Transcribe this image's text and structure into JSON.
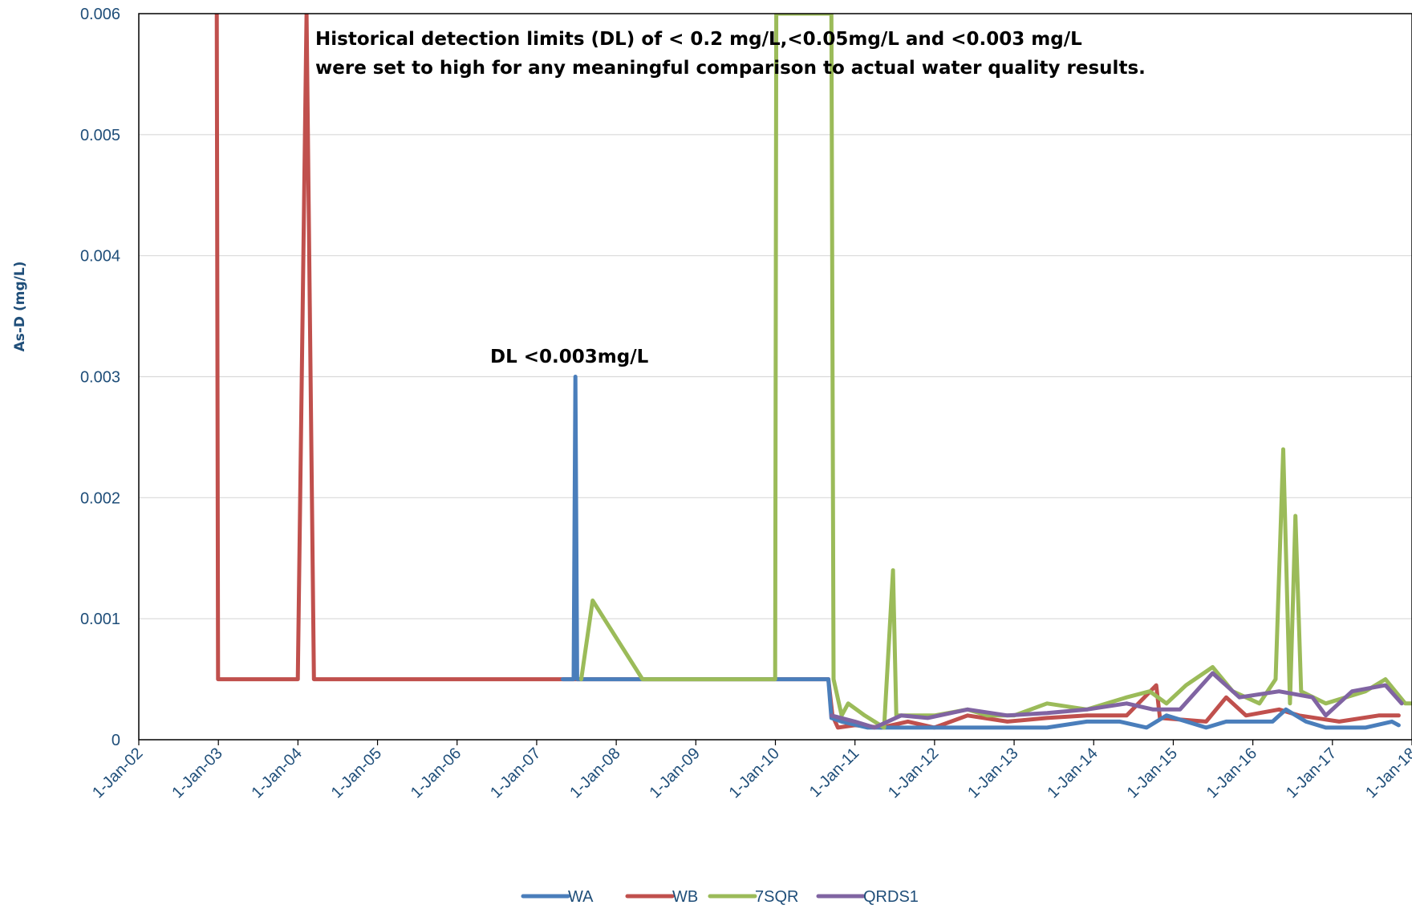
{
  "chart_data": {
    "type": "line",
    "title": "",
    "xlabel": "",
    "ylabel": "As-D  (mg/L)",
    "ylim": [
      0,
      0.006
    ],
    "xlim": [
      "2002-01-01",
      "2018-01-01"
    ],
    "x_ticks": [
      "1-Jan-02",
      "1-Jan-03",
      "1-Jan-04",
      "1-Jan-05",
      "1-Jan-06",
      "1-Jan-07",
      "1-Jan-08",
      "1-Jan-09",
      "1-Jan-10",
      "1-Jan-11",
      "1-Jan-12",
      "1-Jan-13",
      "1-Jan-14",
      "1-Jan-15",
      "1-Jan-16",
      "1-Jan-17",
      "1-Jan-18"
    ],
    "y_ticks": [
      {
        "value": 0,
        "label": "0"
      },
      {
        "value": 0.001,
        "label": "0.001"
      },
      {
        "value": 0.002,
        "label": "0.002"
      },
      {
        "value": 0.003,
        "label": "0.003"
      },
      {
        "value": 0.004,
        "label": "0.004"
      },
      {
        "value": 0.005,
        "label": "0.005"
      },
      {
        "value": 0.006,
        "label": "0.006"
      }
    ],
    "grid": "horizontal",
    "legend_position": "bottom",
    "annotations": [
      {
        "lines": [
          "Historical detection limits (DL) of < 0.2 mg/L,<0.05mg/L and <0.003 mg/L",
          "were set to high for any meaningful comparison to actual water quality results."
        ]
      },
      {
        "lines": [
          "DL <0.003mg/L"
        ]
      }
    ],
    "series": [
      {
        "name": "WA",
        "color": "#4A7EBB",
        "points": [
          [
            "2007-05-01",
            0.0005
          ],
          [
            "2007-06-20",
            0.0005
          ],
          [
            "2007-06-28",
            0.003
          ],
          [
            "2007-07-06",
            0.0005
          ],
          [
            "2007-07-25",
            0.0005
          ],
          [
            "2007-08-05",
            0.0005
          ],
          [
            "2010-09-01",
            0.0005
          ],
          [
            "2010-09-15",
            0.00018
          ],
          [
            "2010-11-01",
            0.00015
          ],
          [
            "2011-03-01",
            0.0001
          ],
          [
            "2011-08-01",
            0.0001
          ],
          [
            "2011-12-01",
            0.0001
          ],
          [
            "2012-06-01",
            0.0001
          ],
          [
            "2012-12-01",
            0.0001
          ],
          [
            "2013-06-01",
            0.0001
          ],
          [
            "2013-12-01",
            0.00015
          ],
          [
            "2014-05-01",
            0.00015
          ],
          [
            "2014-09-01",
            0.0001
          ],
          [
            "2014-12-01",
            0.0002
          ],
          [
            "2015-06-01",
            0.0001
          ],
          [
            "2015-09-01",
            0.00015
          ],
          [
            "2016-04-01",
            0.00015
          ],
          [
            "2016-06-01",
            0.00025
          ],
          [
            "2016-09-01",
            0.00015
          ],
          [
            "2016-12-01",
            0.0001
          ],
          [
            "2017-06-01",
            0.0001
          ],
          [
            "2017-10-01",
            0.00015
          ],
          [
            "2017-11-01",
            0.00012
          ]
        ]
      },
      {
        "name": "WB",
        "color": "#C0504D",
        "points": [
          [
            "2002-12-25",
            0.006
          ],
          [
            "2002-12-31",
            0.0005
          ],
          [
            "2004-01-01",
            0.0005
          ],
          [
            "2004-02-10",
            0.006
          ],
          [
            "2004-03-15",
            0.0005
          ],
          [
            "2010-09-01",
            0.0005
          ],
          [
            "2010-09-20",
            0.0002
          ],
          [
            "2010-10-15",
            0.0001
          ],
          [
            "2011-01-01",
            0.00012
          ],
          [
            "2011-05-01",
            0.0001
          ],
          [
            "2011-09-01",
            0.00015
          ],
          [
            "2012-01-01",
            0.0001
          ],
          [
            "2012-06-01",
            0.0002
          ],
          [
            "2012-12-01",
            0.00015
          ],
          [
            "2013-06-01",
            0.00018
          ],
          [
            "2013-12-01",
            0.0002
          ],
          [
            "2014-06-01",
            0.0002
          ],
          [
            "2014-10-15",
            0.00045
          ],
          [
            "2014-11-01",
            0.00018
          ],
          [
            "2015-06-01",
            0.00015
          ],
          [
            "2015-09-01",
            0.00035
          ],
          [
            "2015-12-01",
            0.0002
          ],
          [
            "2016-05-01",
            0.00025
          ],
          [
            "2016-08-01",
            0.0002
          ],
          [
            "2017-02-01",
            0.00015
          ],
          [
            "2017-08-01",
            0.0002
          ],
          [
            "2017-11-01",
            0.0002
          ]
        ]
      },
      {
        "name": "7SQR",
        "color": "#9BBB59",
        "points": [
          [
            "2007-07-25",
            0.0005
          ],
          [
            "2007-09-15",
            0.00115
          ],
          [
            "2008-05-01",
            0.0005
          ],
          [
            "2009-12-31",
            0.0005
          ],
          [
            "2010-01-05",
            0.006
          ],
          [
            "2010-09-15",
            0.006
          ],
          [
            "2010-09-25",
            0.0005
          ],
          [
            "2010-11-01",
            0.0002
          ],
          [
            "2010-12-01",
            0.0003
          ],
          [
            "2011-02-15",
            0.0002
          ],
          [
            "2011-05-15",
            0.0001
          ],
          [
            "2011-06-25",
            0.0014
          ],
          [
            "2011-07-10",
            0.0002
          ],
          [
            "2012-01-01",
            0.0002
          ],
          [
            "2012-06-01",
            0.00025
          ],
          [
            "2012-09-01",
            0.0002
          ],
          [
            "2013-01-01",
            0.0002
          ],
          [
            "2013-06-01",
            0.0003
          ],
          [
            "2013-12-01",
            0.00025
          ],
          [
            "2014-06-01",
            0.00035
          ],
          [
            "2014-09-15",
            0.0004
          ],
          [
            "2014-12-01",
            0.0003
          ],
          [
            "2015-03-01",
            0.00045
          ],
          [
            "2015-07-01",
            0.0006
          ],
          [
            "2015-10-01",
            0.0004
          ],
          [
            "2016-02-01",
            0.0003
          ],
          [
            "2016-04-15",
            0.0005
          ],
          [
            "2016-05-20",
            0.0024
          ],
          [
            "2016-06-20",
            0.0003
          ],
          [
            "2016-07-15",
            0.00185
          ],
          [
            "2016-08-10",
            0.0004
          ],
          [
            "2016-12-01",
            0.0003
          ],
          [
            "2017-06-01",
            0.0004
          ],
          [
            "2017-09-01",
            0.0005
          ],
          [
            "2017-12-01",
            0.0003
          ],
          [
            "2018-02-01",
            0.0003
          ]
        ]
      },
      {
        "name": "QRDS1",
        "color": "#8064A2",
        "points": [
          [
            "2010-09-15",
            0.0002
          ],
          [
            "2011-01-01",
            0.00015
          ],
          [
            "2011-04-01",
            0.0001
          ],
          [
            "2011-08-01",
            0.0002
          ],
          [
            "2011-12-01",
            0.00018
          ],
          [
            "2012-06-01",
            0.00025
          ],
          [
            "2012-12-01",
            0.0002
          ],
          [
            "2013-06-01",
            0.00022
          ],
          [
            "2013-12-01",
            0.00025
          ],
          [
            "2014-06-01",
            0.0003
          ],
          [
            "2014-10-01",
            0.00025
          ],
          [
            "2015-02-01",
            0.00025
          ],
          [
            "2015-07-01",
            0.00055
          ],
          [
            "2015-11-01",
            0.00035
          ],
          [
            "2016-05-01",
            0.0004
          ],
          [
            "2016-10-01",
            0.00035
          ],
          [
            "2016-12-01",
            0.0002
          ],
          [
            "2017-04-01",
            0.0004
          ],
          [
            "2017-09-01",
            0.00045
          ],
          [
            "2017-11-15",
            0.0003
          ]
        ]
      }
    ]
  }
}
